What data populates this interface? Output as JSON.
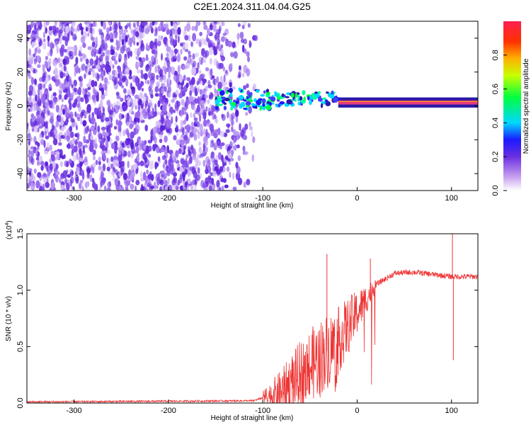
{
  "title": "C2E1.2024.311.04.04.G25",
  "colors": {
    "snr_line": "#ee3333",
    "stripe": "#e43a7f",
    "noise": "#6a2fe0",
    "axis": "#000000"
  },
  "chart_data": [
    {
      "type": "heatmap",
      "name": "spectrogram",
      "xlabel": "Height of straight line (km)",
      "ylabel": "Frequency (Hz)",
      "xlim": [
        -350,
        128
      ],
      "ylim": [
        -50,
        50
      ],
      "x_ticks": [
        -300,
        -200,
        -100,
        0,
        100
      ],
      "y_ticks": [
        -40,
        -20,
        0,
        20,
        40
      ],
      "signal_frequency_hz": 2,
      "colorbar": {
        "label": "Normalized spectral amplitude",
        "range": [
          0,
          1
        ],
        "ticks": [
          "0.0",
          "0.2",
          "0.4",
          "0.6",
          "0.8"
        ]
      }
    },
    {
      "type": "line",
      "name": "snr",
      "xlabel": "Height of straight line (km)",
      "ylabel": "SNR (10 * v/v)",
      "y_multiplier": "(x10",
      "y_multiplier_exp": "4",
      "xlim": [
        -350,
        128
      ],
      "ylim": [
        0,
        1.5
      ],
      "x_ticks": [
        -300,
        -200,
        -100,
        0,
        100
      ],
      "y_ticks": [
        "0.0",
        "0.5",
        "1.0",
        "1.5"
      ],
      "key_points": [
        {
          "x": -350,
          "y": 0.01
        },
        {
          "x": -110,
          "y": 0.02
        },
        {
          "x": -80,
          "y": 0.1
        },
        {
          "x": -60,
          "y": 0.25
        },
        {
          "x": -40,
          "y": 0.4
        },
        {
          "x": -20,
          "y": 0.55
        },
        {
          "x": 0,
          "y": 0.8
        },
        {
          "x": 20,
          "y": 1.05
        },
        {
          "x": 40,
          "y": 1.15
        },
        {
          "x": 60,
          "y": 1.16
        },
        {
          "x": 100,
          "y": 1.12
        },
        {
          "x": 128,
          "y": 1.12
        }
      ],
      "peaks": [
        {
          "x": -32,
          "y": 1.32
        },
        {
          "x": 14,
          "y": 1.28
        },
        {
          "x": 101,
          "y": 1.5
        },
        {
          "x": 102,
          "y": 0.38
        }
      ]
    }
  ]
}
